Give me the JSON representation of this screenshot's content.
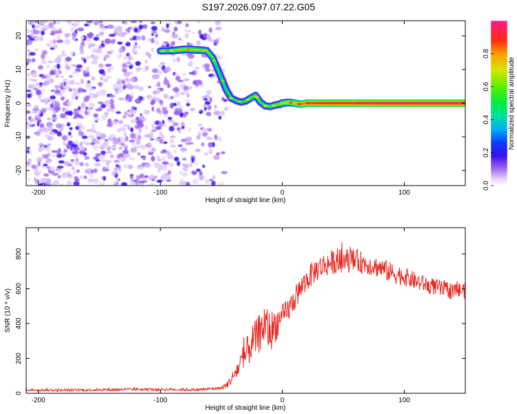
{
  "title": "S197.2026.097.07.22.G05",
  "chart_data": [
    {
      "type": "heatmap",
      "xlabel": "Height of straight line (km)",
      "ylabel": "Frequency (Hz)",
      "xlim": [
        -210,
        150
      ],
      "ylim": [
        -24.5,
        24.5
      ],
      "xticks": [
        -200,
        -100,
        0,
        100
      ],
      "xtick_labels": [
        "-200",
        "-100",
        "0",
        "100"
      ],
      "yticks": [
        -20,
        -10,
        0,
        10,
        20
      ],
      "ytick_labels": [
        "-20",
        "-10",
        "0",
        "10",
        "20"
      ],
      "colorbar": {
        "label": "Normalized spectral amplitude",
        "range": [
          0,
          1
        ],
        "ticks": [
          0.0,
          0.2,
          0.4,
          0.6,
          0.8
        ],
        "tick_labels": [
          "0.0",
          "0.2",
          "0.4",
          "0.6",
          "0.8"
        ]
      },
      "noise_region_x": [
        -210,
        -58
      ],
      "signal_track": {
        "x": [
          -100,
          -90,
          -80,
          -70,
          -62,
          -57,
          -54,
          -50,
          -46,
          -42,
          -38,
          -34,
          -30,
          -26,
          -22,
          -18,
          -14,
          -10,
          -6,
          -2,
          0,
          5,
          10,
          15,
          20,
          30,
          40,
          60,
          80,
          100,
          120,
          150
        ],
        "freq": [
          15.5,
          15.6,
          16.0,
          15.8,
          15.6,
          13.5,
          11.0,
          7.5,
          4.0,
          1.5,
          0.8,
          0.3,
          0.6,
          1.5,
          2.3,
          0.3,
          -0.8,
          -1.0,
          -0.6,
          -0.3,
          0.0,
          0.2,
          0.0,
          -0.3,
          0.0,
          0.0,
          0.0,
          0.0,
          0.0,
          0.0,
          0.0,
          0.0
        ],
        "amplitude": [
          0.5,
          0.6,
          0.65,
          0.65,
          0.6,
          0.55,
          0.5,
          0.45,
          0.5,
          0.5,
          0.45,
          0.5,
          0.5,
          0.55,
          0.6,
          0.5,
          0.55,
          0.55,
          0.6,
          0.6,
          0.65,
          0.7,
          0.75,
          0.8,
          0.85,
          0.9,
          0.9,
          0.92,
          0.95,
          0.95,
          0.95,
          0.95
        ]
      }
    },
    {
      "type": "line",
      "xlabel": "Height of straight line (km)",
      "ylabel": "SNR (10 * v/v)",
      "xlim": [
        -210,
        150
      ],
      "ylim": [
        0,
        950
      ],
      "xticks": [
        -200,
        -100,
        0,
        100
      ],
      "xtick_labels": [
        "-200",
        "-100",
        "0",
        "100"
      ],
      "yticks": [
        0,
        200,
        400,
        600,
        800
      ],
      "ytick_labels": [
        "0",
        "200",
        "400",
        "600",
        "800"
      ],
      "color": "#e8261e",
      "series": [
        {
          "name": "SNR",
          "x": [
            -210,
            -180,
            -150,
            -120,
            -90,
            -70,
            -60,
            -50,
            -45,
            -40,
            -35,
            -30,
            -25,
            -20,
            -15,
            -10,
            -5,
            0,
            5,
            10,
            15,
            20,
            25,
            30,
            40,
            50,
            60,
            70,
            80,
            90,
            100,
            110,
            120,
            130,
            140,
            150
          ],
          "y": [
            20,
            18,
            20,
            22,
            22,
            20,
            25,
            30,
            50,
            100,
            160,
            220,
            290,
            330,
            400,
            350,
            400,
            430,
            480,
            540,
            600,
            650,
            690,
            720,
            750,
            760,
            760,
            740,
            720,
            690,
            670,
            640,
            620,
            600,
            590,
            590
          ],
          "noise_amplitude": [
            8,
            8,
            8,
            8,
            8,
            8,
            8,
            10,
            20,
            40,
            70,
            90,
            100,
            110,
            130,
            120,
            100,
            80,
            70,
            70,
            70,
            70,
            70,
            70,
            70,
            70,
            70,
            60,
            60,
            60,
            55,
            50,
            50,
            50,
            50,
            50
          ]
        }
      ]
    }
  ]
}
